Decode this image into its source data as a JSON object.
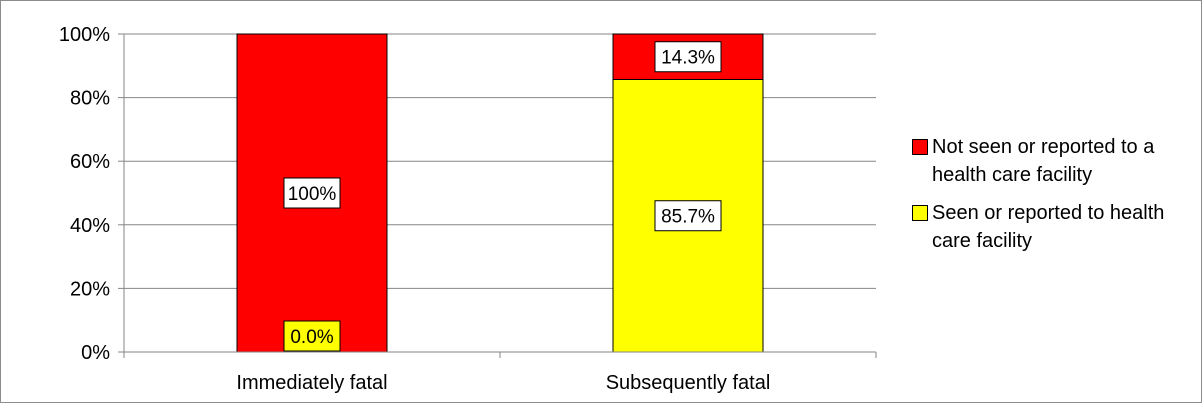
{
  "chart_data": {
    "type": "bar",
    "stacked": true,
    "categories": [
      "Immediately fatal",
      "Subsequently fatal"
    ],
    "series": [
      {
        "name": "Seen or reported to health care facility",
        "values": [
          0.0,
          85.7
        ],
        "labels": [
          "0.0%",
          "85.7%"
        ],
        "color": "#ffff00"
      },
      {
        "name": "Not seen or reported to a health care facility",
        "values": [
          100,
          14.3
        ],
        "labels": [
          "100%",
          "14.3%"
        ],
        "color": "#ff0000"
      }
    ],
    "legend_order": [
      1,
      0
    ],
    "yticks": [
      "0%",
      "20%",
      "40%",
      "60%",
      "80%",
      "100%"
    ],
    "ylim": [
      0,
      100
    ],
    "grid": true,
    "legend_position": "right"
  }
}
